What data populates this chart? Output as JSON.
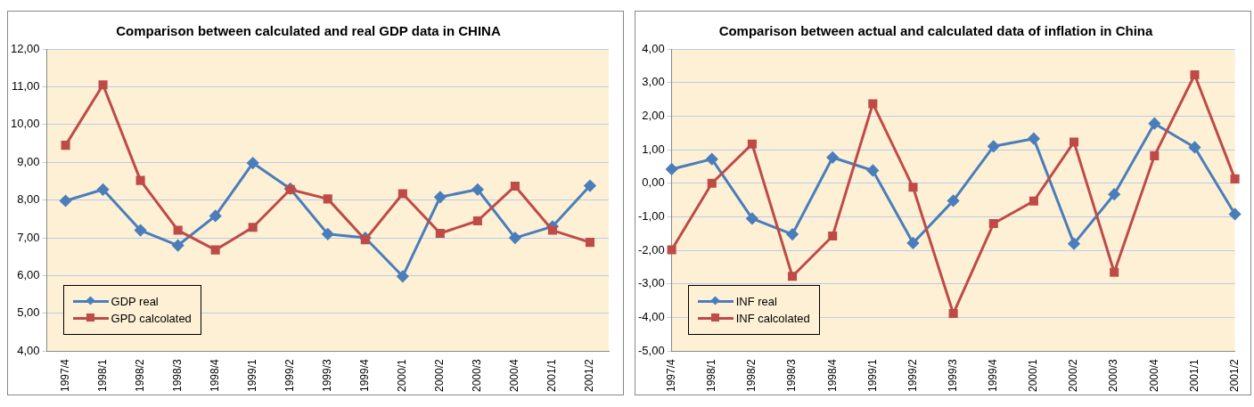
{
  "chart_data": [
    {
      "type": "line",
      "title": "Comparison between calculated and real GDP data in CHINA",
      "categories": [
        "1997/4",
        "1998/1",
        "1998/2",
        "1998/3",
        "1998/4",
        "1999/1",
        "1999/2",
        "1999/3",
        "1999/4",
        "2000/1",
        "2000/2",
        "2000/3",
        "2000/4",
        "2001/1",
        "2001/2"
      ],
      "series": [
        {
          "name": "GDP real",
          "color": "#4a7ebb",
          "marker": "diamond",
          "values": [
            7.98,
            8.28,
            7.2,
            6.8,
            7.58,
            8.98,
            8.3,
            7.1,
            7.0,
            5.98,
            8.08,
            8.28,
            7.0,
            7.3,
            8.38
          ]
        },
        {
          "name": "GPD calcolated",
          "color": "#be4b48",
          "marker": "square",
          "values": [
            9.45,
            11.05,
            8.52,
            7.2,
            6.68,
            7.28,
            8.28,
            8.03,
            6.95,
            8.17,
            7.12,
            7.45,
            8.37,
            7.2,
            6.88
          ]
        }
      ],
      "ylim": [
        4,
        12
      ],
      "yticks": [
        {
          "value": 4,
          "label": "4,00"
        },
        {
          "value": 5,
          "label": "5,00"
        },
        {
          "value": 6,
          "label": "6,00"
        },
        {
          "value": 7,
          "label": "7,00"
        },
        {
          "value": 8,
          "label": "8,00"
        },
        {
          "value": 9,
          "label": "9,00"
        },
        {
          "value": 10,
          "label": "10,00"
        },
        {
          "value": 11,
          "label": "11,00"
        },
        {
          "value": 12,
          "label": "12,00"
        }
      ],
      "grid": "y",
      "legend": "bottom left"
    },
    {
      "type": "line",
      "title": "Comparison between actual and calculated data of inflation in China",
      "categories": [
        "1997/4",
        "1998/1",
        "1998/2",
        "1998/3",
        "1998/4",
        "1999/1",
        "1999/2",
        "1999/3",
        "1999/4",
        "2000/1",
        "2000/2",
        "2000/3",
        "2000/4",
        "2001/1",
        "2001/2"
      ],
      "series": [
        {
          "name": "INF real",
          "color": "#4a7ebb",
          "marker": "diamond",
          "values": [
            0.42,
            0.72,
            -1.05,
            -1.52,
            0.77,
            0.38,
            -1.78,
            -0.52,
            1.1,
            1.33,
            -1.8,
            -0.33,
            1.78,
            1.07,
            -0.92
          ]
        },
        {
          "name": "INF calcolated",
          "color": "#be4b48",
          "marker": "square",
          "values": [
            -1.98,
            0.0,
            1.17,
            -2.77,
            -1.57,
            2.37,
            -0.12,
            -3.88,
            -1.2,
            -0.53,
            1.23,
            -2.65,
            0.82,
            3.23,
            0.13
          ]
        }
      ],
      "ylim": [
        -5,
        4
      ],
      "yticks": [
        {
          "value": -5,
          "label": "-5,00"
        },
        {
          "value": -4,
          "label": "-4,00"
        },
        {
          "value": -3,
          "label": "-3,00"
        },
        {
          "value": -2,
          "label": "-2,00"
        },
        {
          "value": -1,
          "label": "-1,00"
        },
        {
          "value": 0,
          "label": "0,00"
        },
        {
          "value": 1,
          "label": "1,00"
        },
        {
          "value": 2,
          "label": "2,00"
        },
        {
          "value": 3,
          "label": "3,00"
        },
        {
          "value": 4,
          "label": "4,00"
        }
      ],
      "grid": "y",
      "legend": "bottom left"
    }
  ]
}
